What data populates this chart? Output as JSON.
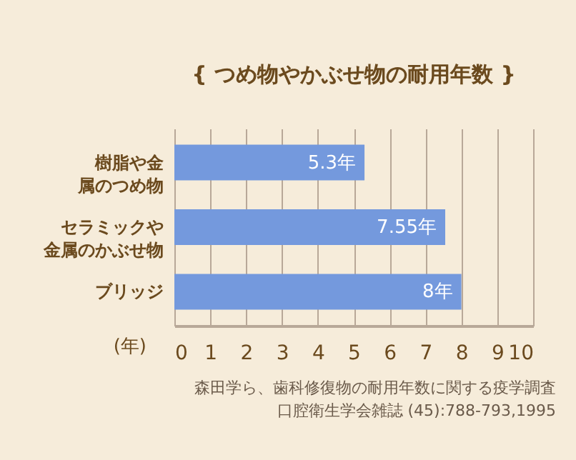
{
  "chart_data": {
    "type": "bar",
    "orientation": "horizontal",
    "title": "{ つめ物やかぶせ物の耐用年数 }",
    "xlabel": "(年)",
    "categories": [
      "樹脂や金属のつめ物",
      "セラミックや金属のかぶせ物",
      "ブリッジ"
    ],
    "values": [
      5.3,
      7.55,
      8
    ],
    "value_labels": [
      "5.3年",
      "7.55年",
      "8年"
    ],
    "color": "#7499dd",
    "xlim": [
      0,
      10
    ],
    "xticks": [
      0,
      1,
      2,
      3,
      4,
      5,
      6,
      7,
      8,
      9,
      10
    ],
    "grid": "x",
    "annotations": [
      "森田学ら、歯科修復物の耐用年数に関する疫学調査",
      "口腔衛生学会雑誌 (45):788-793,1995"
    ]
  }
}
